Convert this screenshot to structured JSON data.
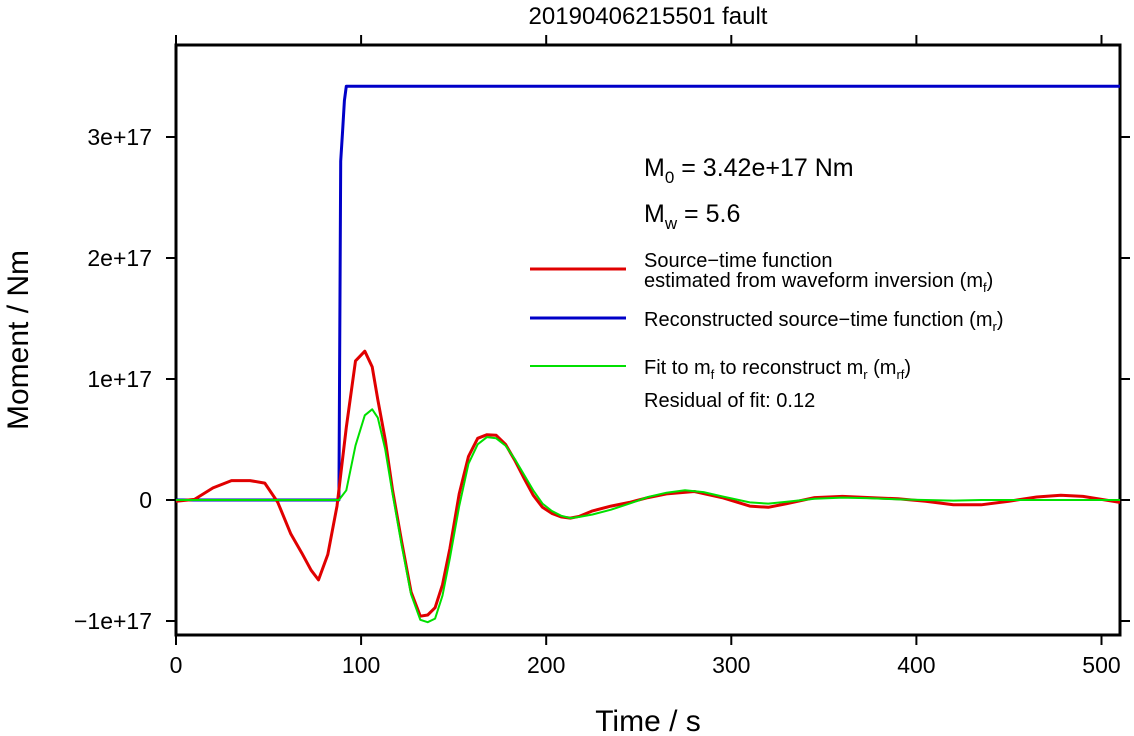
{
  "chart_data": {
    "type": "line",
    "title": "20190406215501 fault",
    "xlabel": "Time / s",
    "ylabel": "Moment / Nm",
    "xlim": [
      0,
      510
    ],
    "ylim": [
      -1.1e+17,
      3.8e+17
    ],
    "xticks": [
      0,
      100,
      200,
      300,
      400,
      500
    ],
    "xtick_labels": [
      "0",
      "100",
      "200",
      "300",
      "400",
      "500"
    ],
    "yticks": [
      -1e+17,
      0,
      1e+17,
      2e+17,
      3e+17
    ],
    "ytick_labels": [
      "−1e+17",
      "0",
      "1e+17",
      "2e+17",
      "3e+17"
    ],
    "grid": false,
    "legend_position": "right",
    "annotations": {
      "m0_prefix": "M",
      "m0_sub": "0",
      "m0_rest": " = 3.42e+17 Nm",
      "mw_prefix": "M",
      "mw_sub": "w",
      "mw_rest": " = 5.6",
      "residual": "Residual of fit: 0.12"
    },
    "legend": [
      {
        "line1": "Source−time function",
        "line2": "estimated from waveform inversion (m",
        "sub": "f",
        "tail": ")",
        "color": "#e00000"
      },
      {
        "line1": "Reconstructed source−time function (m",
        "sub": "r",
        "tail": ")",
        "color": "#0000c8"
      },
      {
        "line1": "Fit to m",
        "sub1": "f",
        "mid": " to reconstruct m",
        "sub2": "r",
        "mid2": " (m",
        "sub3": "rf",
        "tail": ")",
        "color": "#00e000"
      }
    ],
    "series": [
      {
        "color": "#e00000",
        "x": [
          0,
          10,
          20,
          30,
          40,
          48,
          55,
          62,
          68,
          73,
          77,
          82,
          87,
          92,
          97,
          102,
          106,
          109,
          113,
          117,
          122,
          127,
          132,
          136,
          140,
          144,
          148,
          153,
          158,
          163,
          168,
          173,
          178,
          183,
          188,
          193,
          198,
          203,
          208,
          213,
          218,
          225,
          235,
          245,
          255,
          265,
          280,
          295,
          310,
          320,
          330,
          345,
          360,
          375,
          390,
          405,
          420,
          435,
          450,
          465,
          478,
          490,
          500,
          510
        ],
        "y": [
          -1000000000000000.0,
          500000000000000.0,
          1e+16,
          1.6e+16,
          1.6e+16,
          1.4e+16,
          -2000000000000000.0,
          -2.8e+16,
          -4.4e+16,
          -5.8e+16,
          -6.6e+16,
          -4.5e+16,
          -5000000000000000.0,
          6e+16,
          1.15e+17,
          1.23e+17,
          1.1e+17,
          8.3e+16,
          5e+16,
          8000000000000000.0,
          -3.5e+16,
          -7.6e+16,
          -9.6e+16,
          -9.5e+16,
          -8.9e+16,
          -7e+16,
          -4e+16,
          5000000000000000.0,
          3.6e+16,
          5.1e+16,
          5.4e+16,
          5.35e+16,
          4.6e+16,
          3.3e+16,
          1.8e+16,
          4000000000000000.0,
          -6000000000000000.0,
          -1.1e+16,
          -1.4e+16,
          -1.5e+16,
          -1.35e+16,
          -9000000000000000.0,
          -5000000000000000.0,
          -2000000000000000.0,
          2000000000000000.0,
          5000000000000000.0,
          7000000000000000.0,
          2000000000000000.0,
          -5000000000000000.0,
          -6000000000000000.0,
          -3000000000000000.0,
          2000000000000000.0,
          3000000000000000.0,
          2000000000000000.0,
          1000000000000000.0,
          -1000000000000000.0,
          -4000000000000000.0,
          -4000000000000000.0,
          -1000000000000000.0,
          2500000000000000.0,
          4000000000000000.0,
          3000000000000000.0,
          500000000000000.0,
          -2000000000000000.0
        ]
      },
      {
        "color": "#0000c8",
        "x": [
          0,
          88,
          89,
          90,
          91,
          92,
          510
        ],
        "y": [
          0,
          0,
          2.8e+17,
          3.05e+17,
          3.3e+17,
          3.42e+17,
          3.42e+17
        ]
      },
      {
        "color": "#00e000",
        "x": [
          0,
          88,
          92,
          97,
          102,
          106,
          109,
          113,
          117,
          122,
          127,
          132,
          136,
          140,
          144,
          148,
          153,
          158,
          163,
          168,
          173,
          178,
          183,
          188,
          193,
          198,
          203,
          208,
          213,
          218,
          225,
          235,
          245,
          255,
          265,
          275,
          285,
          295,
          310,
          320,
          330,
          345,
          360,
          375,
          390,
          405,
          420,
          435,
          450,
          465,
          480,
          495,
          510
        ],
        "y": [
          0,
          0,
          8000000000000000.0,
          4.5e+16,
          7e+16,
          7.5e+16,
          6.8e+16,
          4.2e+16,
          5000000000000000.0,
          -3.8e+16,
          -7.8e+16,
          -9.9e+16,
          -1.01e+17,
          -9.8e+16,
          -7.9e+16,
          -4.8e+16,
          -5000000000000000.0,
          3e+16,
          4.6e+16,
          5.2e+16,
          5.1e+16,
          4.5e+16,
          3.4e+16,
          2.1e+16,
          8000000000000000.0,
          -3000000000000000.0,
          -9000000000000000.0,
          -1.3e+16,
          -1.5e+16,
          -1.4e+16,
          -1.2e+16,
          -8000000000000000.0,
          -3000000000000000.0,
          2500000000000000.0,
          6000000000000000.0,
          8000000000000000.0,
          6500000000000000.0,
          3000000000000000.0,
          -2000000000000000.0,
          -3000000000000000.0,
          -1500000000000000.0,
          1000000000000000.0,
          2000000000000000.0,
          1500000000000000.0,
          500000000000000.0,
          0.0,
          -500000000000000.0,
          0.0,
          0.0,
          0.0,
          0.0,
          0.0,
          0.0
        ]
      }
    ]
  }
}
